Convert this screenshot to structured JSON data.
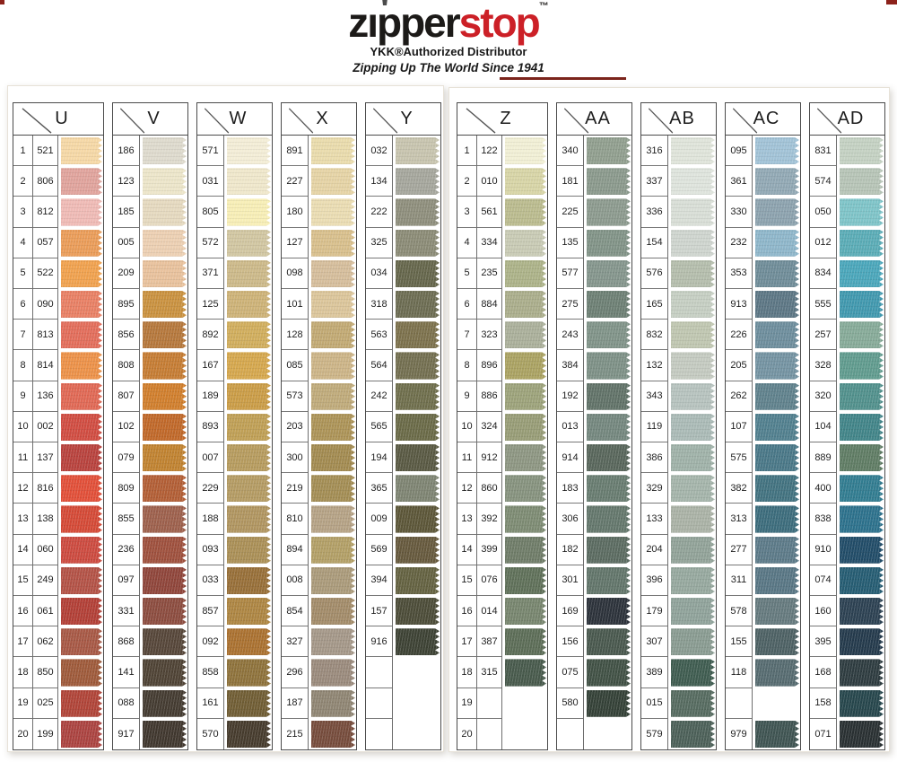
{
  "header": {
    "logo_black": "zıpper",
    "logo_red": "stop",
    "tm": "™",
    "subtitle": "YKK®Authorized Distributor",
    "tagline": "Zipping Up The World Since 1941"
  },
  "pages": [
    {
      "columns": [
        {
          "letter": "U",
          "numbered": true,
          "rows": [
            [
              "1",
              "521",
              "#f5d8a6"
            ],
            [
              "2",
              "806",
              "#e0a39c"
            ],
            [
              "3",
              "812",
              "#efbab5"
            ],
            [
              "4",
              "057",
              "#ea9c58"
            ],
            [
              "5",
              "522",
              "#f0a14e"
            ],
            [
              "6",
              "090",
              "#e87f64"
            ],
            [
              "7",
              "813",
              "#e26d5a"
            ],
            [
              "8",
              "814",
              "#ec9148"
            ],
            [
              "9",
              "136",
              "#e06854"
            ],
            [
              "10",
              "002",
              "#d04c41"
            ],
            [
              "11",
              "137",
              "#b8423d"
            ],
            [
              "12",
              "816",
              "#e14f38"
            ],
            [
              "13",
              "138",
              "#d44936"
            ],
            [
              "14",
              "060",
              "#cc4a3f"
            ],
            [
              "15",
              "249",
              "#b35246"
            ],
            [
              "16",
              "061",
              "#b23f36"
            ],
            [
              "17",
              "062",
              "#a75845"
            ],
            [
              "18",
              "850",
              "#9e5a3a"
            ],
            [
              "19",
              "025",
              "#b04438"
            ],
            [
              "20",
              "199",
              "#ab4340"
            ]
          ]
        },
        {
          "letter": "V",
          "numbered": false,
          "rows": [
            [
              "1",
              "186",
              "#dedacd"
            ],
            [
              "2",
              "123",
              "#ece5c9"
            ],
            [
              "3",
              "185",
              "#e5d9bf"
            ],
            [
              "4",
              "005",
              "#eccfb2"
            ],
            [
              "5",
              "209",
              "#e8c19c"
            ],
            [
              "6",
              "895",
              "#c9913f"
            ],
            [
              "7",
              "856",
              "#b5773b"
            ],
            [
              "8",
              "808",
              "#c57c33"
            ],
            [
              "9",
              "807",
              "#d07e2c"
            ],
            [
              "10",
              "102",
              "#c06829"
            ],
            [
              "11",
              "079",
              "#c08230"
            ],
            [
              "12",
              "809",
              "#b25e35"
            ],
            [
              "13",
              "855",
              "#9d604c"
            ],
            [
              "14",
              "236",
              "#9e503d"
            ],
            [
              "15",
              "097",
              "#8f453a"
            ],
            [
              "16",
              "331",
              "#8c4c3f"
            ],
            [
              "17",
              "868",
              "#564639"
            ],
            [
              "18",
              "141",
              "#4f4335"
            ],
            [
              "19",
              "088",
              "#443b31"
            ],
            [
              "20",
              "917",
              "#40372e"
            ]
          ]
        },
        {
          "letter": "W",
          "numbered": false,
          "rows": [
            [
              "1",
              "571",
              "#f3edd6"
            ],
            [
              "2",
              "031",
              "#efe7cb"
            ],
            [
              "3",
              "805",
              "#f7eeb6"
            ],
            [
              "4",
              "572",
              "#d1c6a1"
            ],
            [
              "5",
              "371",
              "#ccb989"
            ],
            [
              "6",
              "125",
              "#cdb277"
            ],
            [
              "7",
              "892",
              "#d0ad5c"
            ],
            [
              "8",
              "167",
              "#d5a74d"
            ],
            [
              "9",
              "189",
              "#ca9c46"
            ],
            [
              "10",
              "893",
              "#bf9f55"
            ],
            [
              "11",
              "007",
              "#b69b5e"
            ],
            [
              "12",
              "229",
              "#b49b63"
            ],
            [
              "13",
              "188",
              "#b09560"
            ],
            [
              "14",
              "093",
              "#aa8f56"
            ],
            [
              "15",
              "033",
              "#976f38"
            ],
            [
              "16",
              "857",
              "#ad8542"
            ],
            [
              "17",
              "092",
              "#aa7130"
            ],
            [
              "18",
              "858",
              "#8e723b"
            ],
            [
              "19",
              "161",
              "#705d34"
            ],
            [
              "20",
              "570",
              "#463b2d"
            ]
          ]
        },
        {
          "letter": "X",
          "numbered": false,
          "rows": [
            [
              "1",
              "891",
              "#e9dbac"
            ],
            [
              "2",
              "227",
              "#e5d3a5"
            ],
            [
              "3",
              "180",
              "#eadcb2"
            ],
            [
              "4",
              "127",
              "#d8bf8c"
            ],
            [
              "5",
              "098",
              "#d5bd9b"
            ],
            [
              "6",
              "101",
              "#dbc59a"
            ],
            [
              "7",
              "128",
              "#c1a973"
            ],
            [
              "8",
              "085",
              "#ccb487"
            ],
            [
              "9",
              "573",
              "#bfaa7a"
            ],
            [
              "10",
              "203",
              "#ac9357"
            ],
            [
              "11",
              "300",
              "#a28a50"
            ],
            [
              "12",
              "219",
              "#a38d54"
            ],
            [
              "13",
              "810",
              "#b5a285"
            ],
            [
              "14",
              "894",
              "#b29f66"
            ],
            [
              "15",
              "008",
              "#aa9a7a"
            ],
            [
              "16",
              "854",
              "#a28b69"
            ],
            [
              "17",
              "327",
              "#a49788"
            ],
            [
              "18",
              "296",
              "#9a8a7c"
            ],
            [
              "19",
              "187",
              "#8f8573"
            ],
            [
              "20",
              "215",
              "#764c3c"
            ]
          ]
        },
        {
          "letter": "Y",
          "numbered": false,
          "rows": [
            [
              "1",
              "032",
              "#c7c4ae"
            ],
            [
              "2",
              "134",
              "#a5a69c"
            ],
            [
              "3",
              "222",
              "#8e8e7c"
            ],
            [
              "4",
              "325",
              "#8b8b76"
            ],
            [
              "5",
              "034",
              "#65664b"
            ],
            [
              "6",
              "318",
              "#6c6c52"
            ],
            [
              "7",
              "563",
              "#7c714c"
            ],
            [
              "8",
              "564",
              "#736f50"
            ],
            [
              "9",
              "242",
              "#6f6e4c"
            ],
            [
              "10",
              "565",
              "#6a6a47"
            ],
            [
              "11",
              "194",
              "#595943"
            ],
            [
              "12",
              "365",
              "#7e8472"
            ],
            [
              "13",
              "009",
              "#5c5638"
            ],
            [
              "14",
              "569",
              "#66593d"
            ],
            [
              "15",
              "394",
              "#646241"
            ],
            [
              "16",
              "157",
              "#4c4c38"
            ],
            [
              "17",
              "916",
              "#3d4234"
            ],
            [
              "18",
              "",
              ""
            ],
            [
              "19",
              "",
              ""
            ],
            [
              "20",
              "",
              ""
            ]
          ]
        }
      ]
    },
    {
      "columns": [
        {
          "letter": "Z",
          "numbered": true,
          "rows": [
            [
              "1",
              "122",
              "#f1efd5"
            ],
            [
              "2",
              "010",
              "#d7d4a6"
            ],
            [
              "3",
              "561",
              "#babb8e"
            ],
            [
              "4",
              "334",
              "#c8cab4"
            ],
            [
              "5",
              "235",
              "#acb288"
            ],
            [
              "6",
              "884",
              "#aaad8b"
            ],
            [
              "7",
              "323",
              "#aaaf9a"
            ],
            [
              "8",
              "896",
              "#aaa262"
            ],
            [
              "9",
              "886",
              "#9ca27a"
            ],
            [
              "10",
              "324",
              "#979c76"
            ],
            [
              "11",
              "912",
              "#8d9682"
            ],
            [
              "12",
              "860",
              "#86927e"
            ],
            [
              "13",
              "392",
              "#7d8b73"
            ],
            [
              "14",
              "399",
              "#6f7c68"
            ],
            [
              "15",
              "076",
              "#5f7059"
            ],
            [
              "16",
              "014",
              "#77856e"
            ],
            [
              "17",
              "387",
              "#5c6d57"
            ],
            [
              "18",
              "315",
              "#485a4c"
            ],
            [
              "19",
              "",
              ""
            ],
            [
              "20",
              "",
              ""
            ]
          ]
        },
        {
          "letter": "AA",
          "numbered": false,
          "rows": [
            [
              "1",
              "340",
              "#909e8e"
            ],
            [
              "2",
              "181",
              "#8a998c"
            ],
            [
              "3",
              "225",
              "#8c9a8e"
            ],
            [
              "4",
              "135",
              "#819387"
            ],
            [
              "5",
              "577",
              "#84958c"
            ],
            [
              "6",
              "275",
              "#6d7f74"
            ],
            [
              "7",
              "243",
              "#809388"
            ],
            [
              "8",
              "384",
              "#7d9086"
            ],
            [
              "9",
              "192",
              "#617268"
            ],
            [
              "10",
              "013",
              "#74877e"
            ],
            [
              "11",
              "914",
              "#58665b"
            ],
            [
              "12",
              "183",
              "#687c70"
            ],
            [
              "13",
              "306",
              "#64776c"
            ],
            [
              "14",
              "182",
              "#5b6b61"
            ],
            [
              "15",
              "301",
              "#62756a"
            ],
            [
              "16",
              "169",
              "#2c323a"
            ],
            [
              "17",
              "156",
              "#49584e"
            ],
            [
              "18",
              "075",
              "#415145"
            ],
            [
              "19",
              "580",
              "#344137"
            ],
            [
              "20",
              "",
              ""
            ]
          ]
        },
        {
          "letter": "AB",
          "numbered": false,
          "rows": [
            [
              "1",
              "316",
              "#dfe4da"
            ],
            [
              "2",
              "337",
              "#dee3dc"
            ],
            [
              "3",
              "336",
              "#d8ded6"
            ],
            [
              "4",
              "154",
              "#ced4ce"
            ],
            [
              "5",
              "576",
              "#b4bdac"
            ],
            [
              "6",
              "165",
              "#c5cec2"
            ],
            [
              "7",
              "832",
              "#bfc6b0"
            ],
            [
              "8",
              "132",
              "#c4cac0"
            ],
            [
              "9",
              "343",
              "#b6c2be"
            ],
            [
              "10",
              "119",
              "#aabab6"
            ],
            [
              "11",
              "386",
              "#9fb1a8"
            ],
            [
              "12",
              "329",
              "#a4b4aa"
            ],
            [
              "13",
              "133",
              "#aab2a6"
            ],
            [
              "14",
              "204",
              "#91a298"
            ],
            [
              "15",
              "396",
              "#96a89e"
            ],
            [
              "16",
              "179",
              "#8fa29a"
            ],
            [
              "17",
              "307",
              "#899b91"
            ],
            [
              "18",
              "389",
              "#3f5c50"
            ],
            [
              "19",
              "015",
              "#566b60"
            ],
            [
              "20",
              "579",
              "#4c6058"
            ]
          ]
        },
        {
          "letter": "AC",
          "numbered": false,
          "rows": [
            [
              "1",
              "095",
              "#a1c2d6"
            ],
            [
              "2",
              "361",
              "#91a8b4"
            ],
            [
              "3",
              "330",
              "#8ca2ae"
            ],
            [
              "4",
              "232",
              "#8eb6ca"
            ],
            [
              "5",
              "353",
              "#6f8c98"
            ],
            [
              "6",
              "913",
              "#5c7684"
            ],
            [
              "7",
              "226",
              "#6d8d9c"
            ],
            [
              "8",
              "205",
              "#7493a2"
            ],
            [
              "9",
              "262",
              "#5f818c"
            ],
            [
              "10",
              "107",
              "#517f8e"
            ],
            [
              "11",
              "575",
              "#497787"
            ],
            [
              "12",
              "382",
              "#427280"
            ],
            [
              "13",
              "313",
              "#3c6c7c"
            ],
            [
              "14",
              "277",
              "#5c7a88"
            ],
            [
              "15",
              "311",
              "#587684"
            ],
            [
              "16",
              "578",
              "#657a7e"
            ],
            [
              "17",
              "155",
              "#4d6164"
            ],
            [
              "18",
              "118",
              "#566b70"
            ],
            [
              "19",
              "",
              ""
            ],
            [
              "20",
              "979",
              "#3f5452"
            ]
          ]
        },
        {
          "letter": "AD",
          "numbered": false,
          "rows": [
            [
              "1",
              "831",
              "#c4d1c2"
            ],
            [
              "2",
              "574",
              "#b6c4b6"
            ],
            [
              "3",
              "050",
              "#7ec4c8"
            ],
            [
              "4",
              "012",
              "#5aacb6"
            ],
            [
              "5",
              "834",
              "#4aa6ba"
            ],
            [
              "6",
              "555",
              "#4098ae"
            ],
            [
              "7",
              "257",
              "#86aa98"
            ],
            [
              "8",
              "328",
              "#609b8e"
            ],
            [
              "9",
              "320",
              "#51908c"
            ],
            [
              "10",
              "104",
              "#418488"
            ],
            [
              "11",
              "889",
              "#5f7c64"
            ],
            [
              "12",
              "400",
              "#317c90"
            ],
            [
              "13",
              "838",
              "#2c718c"
            ],
            [
              "14",
              "910",
              "#214c68"
            ],
            [
              "15",
              "074",
              "#255c72"
            ],
            [
              "16",
              "160",
              "#2c4152"
            ],
            [
              "17",
              "395",
              "#243a4c"
            ],
            [
              "18",
              "168",
              "#2e3c40"
            ],
            [
              "19",
              "158",
              "#26464c"
            ],
            [
              "20",
              "071",
              "#293032"
            ]
          ]
        }
      ]
    }
  ]
}
